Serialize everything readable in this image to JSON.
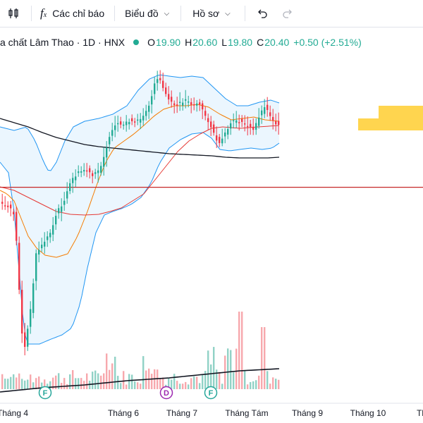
{
  "toolbar": {
    "indicators_label": "Các chỉ báo",
    "chart_type_label": "Biểu đồ",
    "profile_label": "Hồ sơ"
  },
  "legend": {
    "title": "a chất Lâm Thao · 1D · HNX",
    "o_label": "O",
    "o_value": "19.90",
    "h_label": "H",
    "h_value": "20.60",
    "l_label": "L",
    "l_value": "19.80",
    "c_label": "C",
    "c_value": "20.40",
    "change": "+0.50 (+2.51%)"
  },
  "colors": {
    "up": "#22ab94",
    "down": "#f23645",
    "vol_up": "#91d2c6",
    "vol_down": "#f7a8ad",
    "bb_band": "#2196f3",
    "bb_fill": "#e3f2fd",
    "ma_short": "#f57c00",
    "ma_mid": "#e53935",
    "ma_long": "#131722",
    "level_line": "#c62828",
    "zone": "#ffd54f"
  },
  "chart_data": {
    "type": "candlestick",
    "x_labels": [
      "Tháng 4",
      "Tháng 6",
      "Tháng 7",
      "Tháng Tám",
      "Tháng 9",
      "Tháng 10",
      "Th"
    ],
    "event_markers": [
      "F",
      "D",
      "F"
    ],
    "price_range": [
      10,
      28
    ],
    "horizontal_level": 20.7,
    "grid": false,
    "indicators": [
      "Bollinger Bands",
      "MA short",
      "MA mid",
      "MA long",
      "Volume",
      "Volume MA"
    ]
  }
}
